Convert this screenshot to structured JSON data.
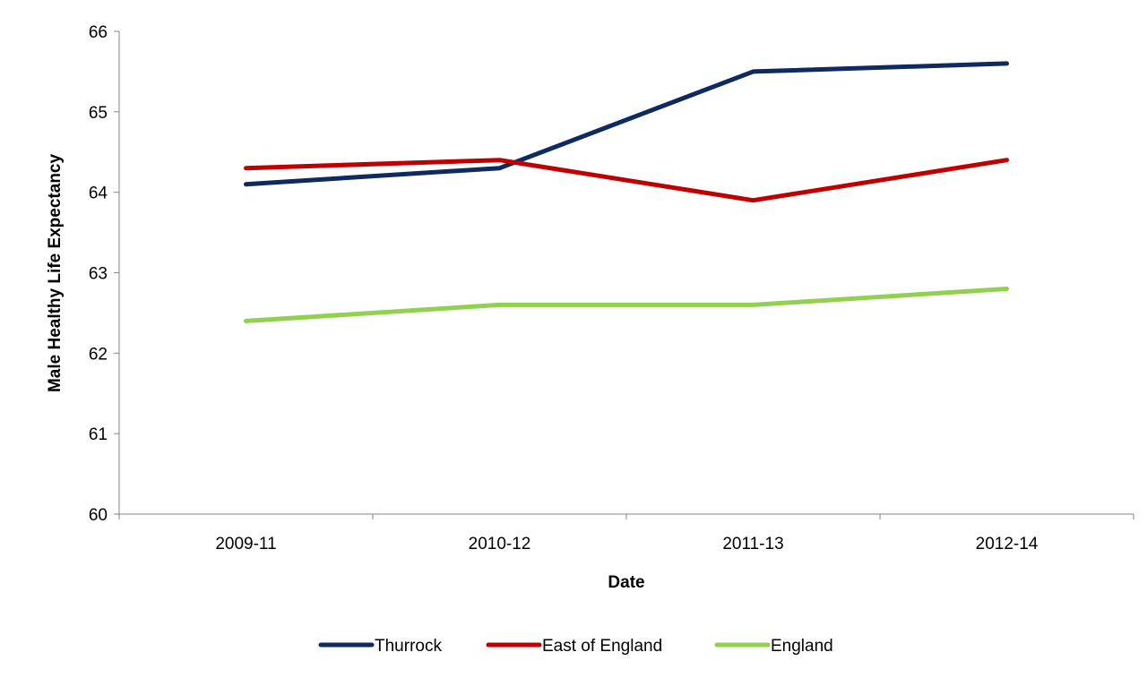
{
  "chart_data": {
    "type": "line",
    "title": "",
    "xlabel": "Date",
    "ylabel": "Male Healthy Life Expectancy",
    "categories": [
      "2009-11",
      "2010-12",
      "2011-13",
      "2012-14"
    ],
    "ylim": [
      60,
      66
    ],
    "yticks": [
      60,
      61,
      62,
      63,
      64,
      65,
      66
    ],
    "grid": false,
    "legend_position": "bottom",
    "series": [
      {
        "name": "Thurrock",
        "color": "#0e2a5f",
        "values": [
          64.1,
          64.3,
          65.5,
          65.6
        ]
      },
      {
        "name": "East of England",
        "color": "#c00000",
        "values": [
          64.3,
          64.4,
          63.9,
          64.4
        ]
      },
      {
        "name": "England",
        "color": "#92d050",
        "values": [
          62.4,
          62.6,
          62.6,
          62.8
        ]
      }
    ]
  }
}
